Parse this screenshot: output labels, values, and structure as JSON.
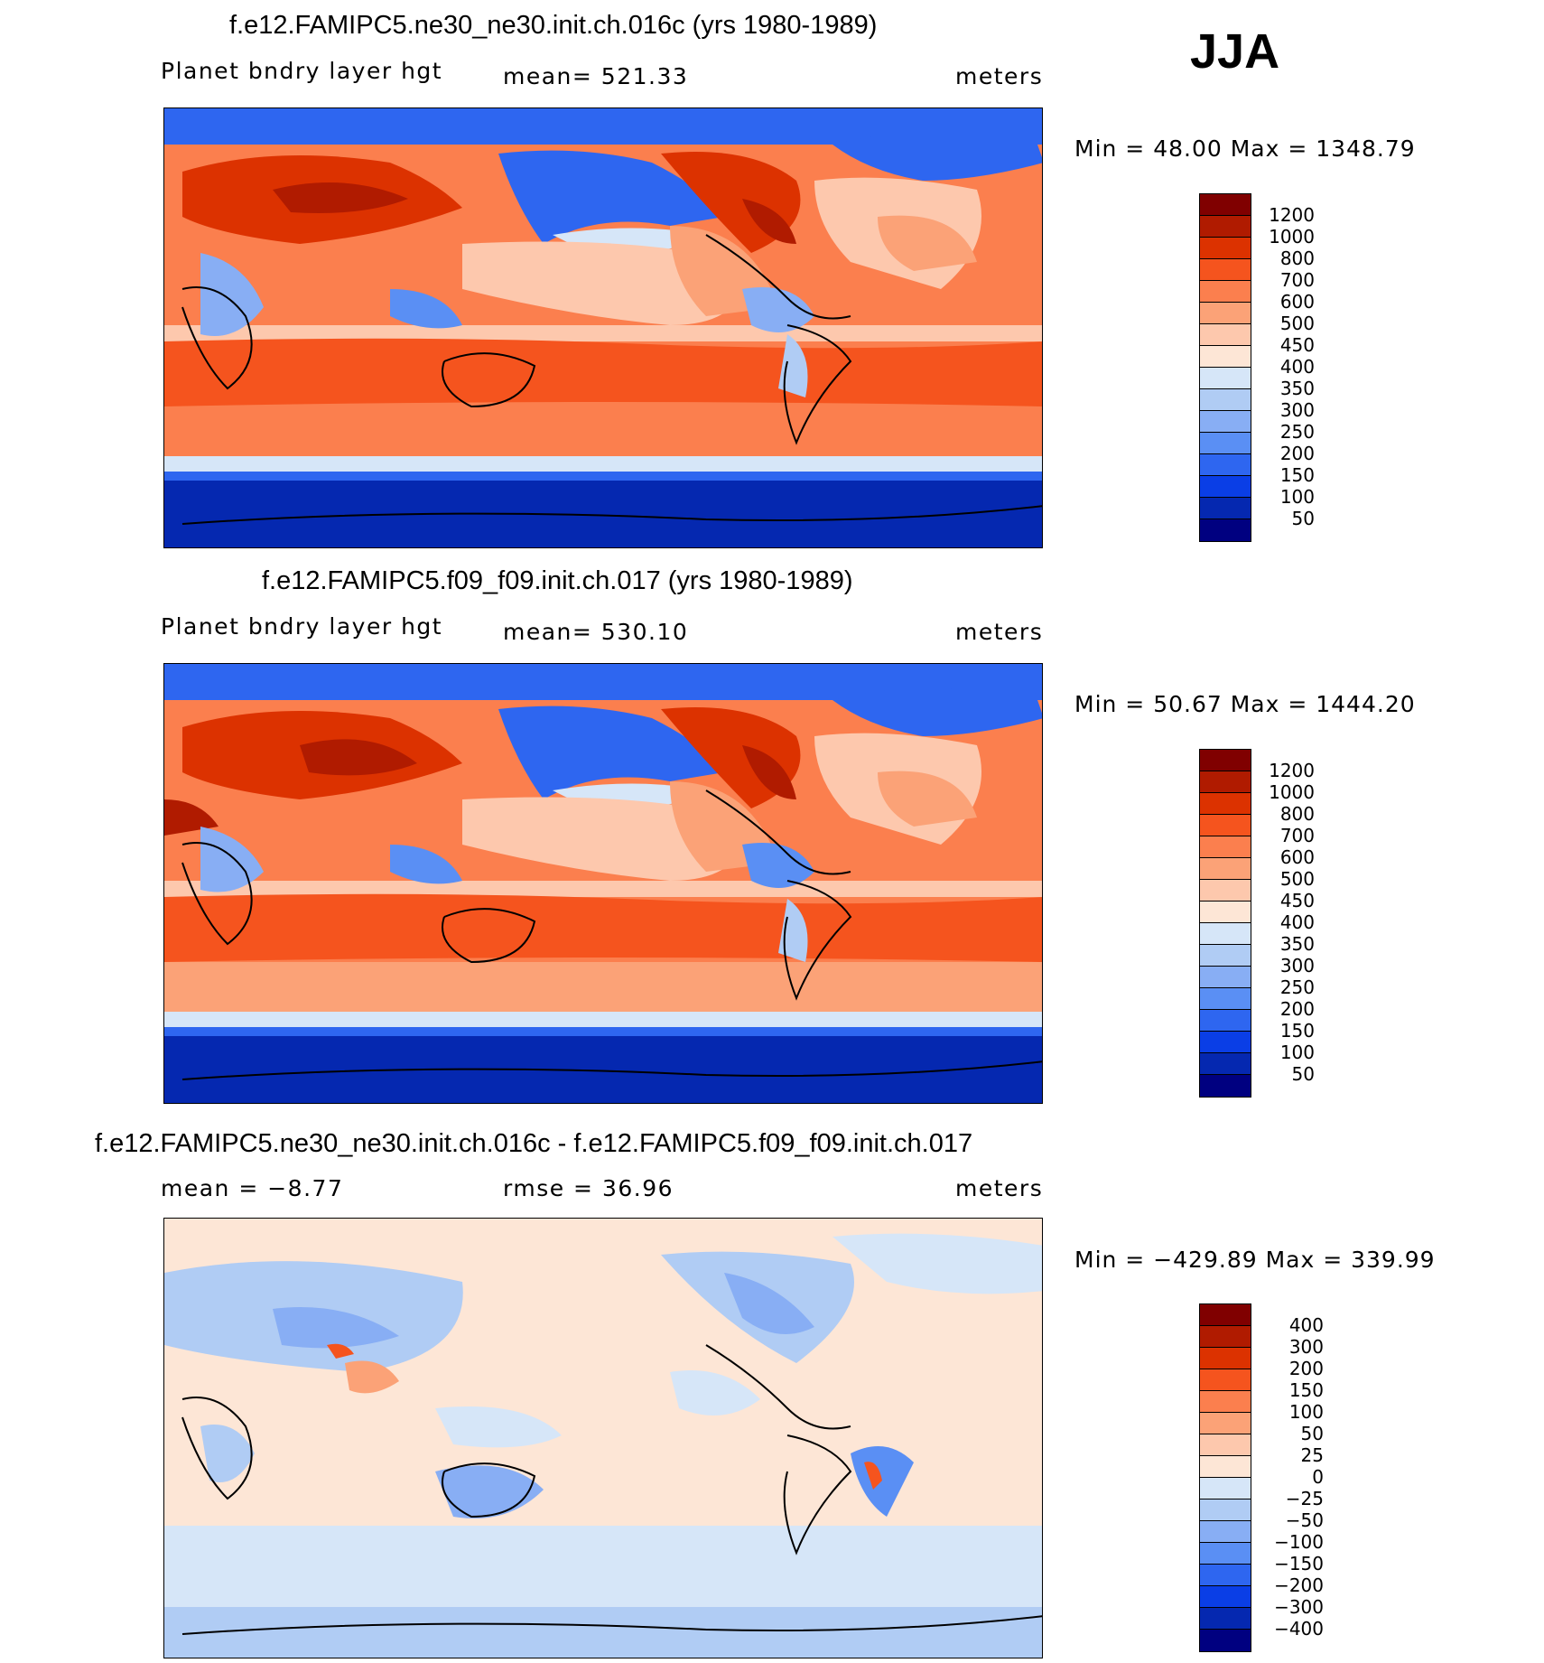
{
  "season": "JJA",
  "panels": [
    {
      "id": "p1",
      "title": "f.e12.FAMIPC5.ne30_ne30.init.ch.016c (yrs 1980-1989)",
      "variable": "Planet bndry layer hgt",
      "stat": "mean= 521.33",
      "units": "meters",
      "minmax": "Min =   48.00 Max = 1348.79",
      "colors": [
        "#800000",
        "#b01b00",
        "#dc3200",
        "#f5541e",
        "#fb7f4e",
        "#fba277",
        "#fdc8ad",
        "#fde6d6",
        "#d6e6f8",
        "#b0ccf4",
        "#88aef4",
        "#5a8ff4",
        "#2e66f0",
        "#0a3ee6",
        "#0528b0",
        "#000080"
      ],
      "labels": [
        "1200",
        "1000",
        "800",
        "700",
        "600",
        "500",
        "450",
        "400",
        "350",
        "300",
        "250",
        "200",
        "150",
        "100",
        "50"
      ]
    },
    {
      "id": "p2",
      "title": "f.e12.FAMIPC5.f09_f09.init.ch.017 (yrs 1980-1989)",
      "variable": "Planet bndry layer hgt",
      "stat": "mean= 530.10",
      "units": "meters",
      "minmax": "Min =   50.67 Max = 1444.20",
      "colors": [
        "#800000",
        "#b01b00",
        "#dc3200",
        "#f5541e",
        "#fb7f4e",
        "#fba277",
        "#fdc8ad",
        "#fde6d6",
        "#d6e6f8",
        "#b0ccf4",
        "#88aef4",
        "#5a8ff4",
        "#2e66f0",
        "#0a3ee6",
        "#0528b0",
        "#000080"
      ],
      "labels": [
        "1200",
        "1000",
        "800",
        "700",
        "600",
        "500",
        "450",
        "400",
        "350",
        "300",
        "250",
        "200",
        "150",
        "100",
        "50"
      ]
    },
    {
      "id": "p3",
      "title": "f.e12.FAMIPC5.ne30_ne30.init.ch.016c - f.e12.FAMIPC5.f09_f09.init.ch.017",
      "stat_left": "mean =   −8.77",
      "stat": "rmse =   36.96",
      "units": "meters",
      "minmax": "Min = −429.89 Max = 339.99",
      "colors": [
        "#800000",
        "#b01b00",
        "#dc3200",
        "#f5541e",
        "#fb7f4e",
        "#fba277",
        "#fdc8ad",
        "#fde6d6",
        "#d6e6f8",
        "#b0ccf4",
        "#88aef4",
        "#5a8ff4",
        "#2e66f0",
        "#0a3ee6",
        "#0528b0",
        "#000080"
      ],
      "labels": [
        "400",
        "300",
        "200",
        "150",
        "100",
        "50",
        "25",
        "0",
        "−25",
        "−50",
        "−100",
        "−150",
        "−200",
        "−300",
        "−400"
      ]
    }
  ]
}
